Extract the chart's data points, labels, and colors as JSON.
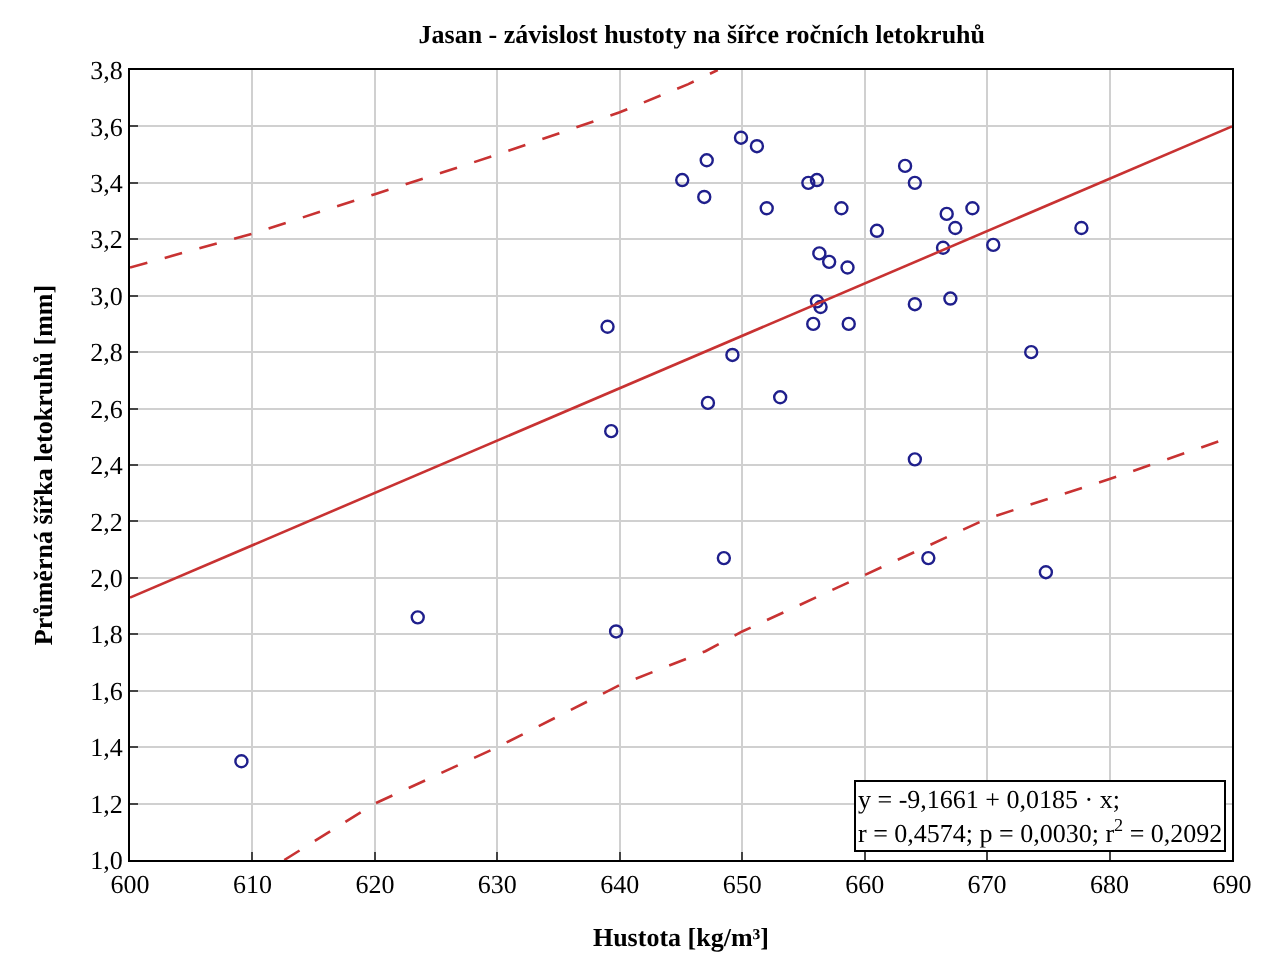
{
  "chart_data": {
    "type": "scatter",
    "title": "Jasan - závislost hustoty na šířce ročních letokruhů",
    "xlabel": "Hustota [kg/m³]",
    "ylabel": "Průměrná šířka letokruhů [mm]",
    "annotations": [
      "y = -9,1661 + 0,0185 · x;\nr = 0,4574; p = 0,0030; r$^{2}$ = 0,2092"
    ],
    "series": [
      {
        "color": "#1f1f8c",
        "marker": "circle",
        "x": [
          645.1,
          647.1,
          646.9,
          649.9,
          651.2,
          652.0,
          655.4,
          656.1,
          658.1,
          656.3,
          657.1,
          658.6,
          661.0,
          663.3,
          664.1,
          666.7,
          667.4,
          668.8,
          666.4,
          670.5,
          677.7,
          656.1,
          656.4,
          655.8,
          658.7,
          664.1,
          667.0,
          649.2,
          647.2,
          653.1,
          664.1,
          673.6,
          639.0,
          639.3,
          609.1,
          623.5,
          639.7,
          648.5,
          665.2,
          674.8
        ],
        "values": [
          3.41,
          3.48,
          3.35,
          3.56,
          3.53,
          3.31,
          3.4,
          3.41,
          3.31,
          3.15,
          3.12,
          3.1,
          3.23,
          3.46,
          3.4,
          3.29,
          3.24,
          3.31,
          3.17,
          3.18,
          3.24,
          2.98,
          2.96,
          2.9,
          2.9,
          2.97,
          2.99,
          2.79,
          2.62,
          2.64,
          2.42,
          2.8,
          2.89,
          2.52,
          1.35,
          1.86,
          1.81,
          2.07,
          2.07,
          2.02
        ]
      },
      {
        "type": "line",
        "color": "#c83232",
        "line_style": "solid",
        "x": [
          600,
          690
        ],
        "values": [
          1.93,
          3.6
        ]
      },
      {
        "type": "line",
        "color": "#c83232",
        "line_style": "dashed",
        "x": [
          600,
          610,
          620,
          630,
          640,
          645.6,
          648
        ],
        "values": [
          3.1,
          3.22,
          3.36,
          3.5,
          3.65,
          3.75,
          3.8
        ]
      },
      {
        "type": "line",
        "color": "#c83232",
        "line_style": "dashed",
        "x": [
          612.6,
          620,
          630,
          640,
          647,
          650,
          660,
          670,
          680,
          690
        ],
        "values": [
          1.0,
          1.2,
          1.4,
          1.62,
          1.74,
          1.81,
          2.01,
          2.21,
          2.35,
          2.5
        ]
      }
    ],
    "xlim": [
      600,
      690
    ],
    "xticks": [
      600,
      610,
      620,
      630,
      640,
      650,
      660,
      670,
      680,
      690
    ],
    "ylim": [
      1.0,
      3.8
    ],
    "yticks": [
      {
        "value": 1.0,
        "label": "1,0"
      },
      {
        "value": 1.2,
        "label": "1,2"
      },
      {
        "value": 1.4,
        "label": "1,4"
      },
      {
        "value": 1.6,
        "label": "1,6"
      },
      {
        "value": 1.8,
        "label": "1,8"
      },
      {
        "value": 2.0,
        "label": "2,0"
      },
      {
        "value": 2.2,
        "label": "2,2"
      },
      {
        "value": 2.4,
        "label": "2,4"
      },
      {
        "value": 2.6,
        "label": "2,6"
      },
      {
        "value": 2.8,
        "label": "2,8"
      },
      {
        "value": 3.0,
        "label": "3,0"
      },
      {
        "value": 3.2,
        "label": "3,2"
      },
      {
        "value": 3.4,
        "label": "3,4"
      },
      {
        "value": 3.6,
        "label": "3,6"
      },
      {
        "value": 3.8,
        "label": "3,8"
      }
    ],
    "grid": true
  }
}
